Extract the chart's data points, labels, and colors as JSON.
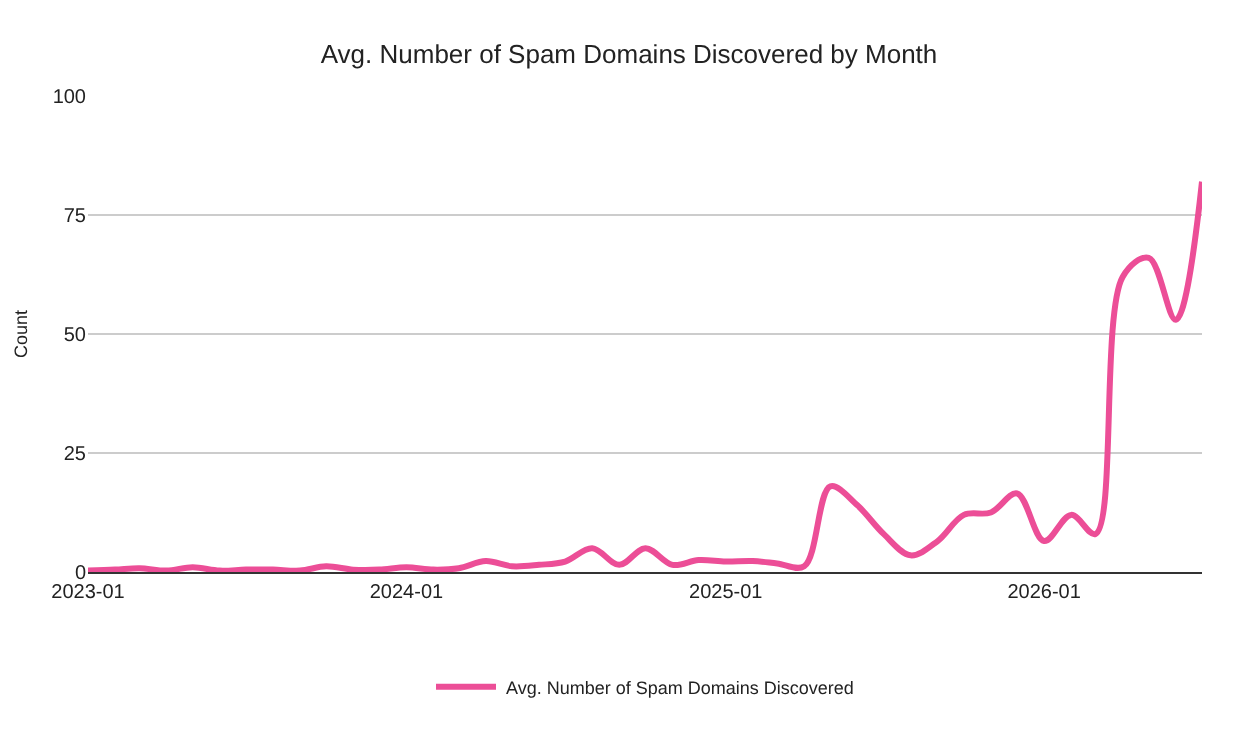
{
  "chart_data": {
    "type": "line",
    "title": "Avg. Number of Spam Domains Discovered by Month",
    "ylabel": "Count",
    "x": [
      "2023-01",
      "2023-02",
      "2023-03",
      "2023-04",
      "2023-05",
      "2023-06",
      "2023-07",
      "2023-08",
      "2023-09",
      "2023-10",
      "2023-11",
      "2023-12",
      "2024-01",
      "2024-02",
      "2024-03",
      "2024-04",
      "2024-05",
      "2024-06",
      "2024-07",
      "2024-08",
      "2024-09",
      "2024-10",
      "2024-11",
      "2024-12",
      "2025-01",
      "2025-02",
      "2025-03",
      "2025-04",
      "2025-05",
      "2025-06",
      "2025-07",
      "2025-08",
      "2025-09",
      "2025-10",
      "2025-11",
      "2025-12",
      "2026-01",
      "2026-02",
      "2026-03",
      "2026-04",
      "2026-05",
      "2026-06",
      "2026-07"
    ],
    "series": [
      {
        "name": "Avg. Number of Spam Domains Discovered",
        "color": "#ec4e97",
        "values": [
          0.3,
          0.5,
          0.8,
          0.3,
          1,
          0.3,
          0.5,
          0.5,
          0.3,
          1.2,
          0.5,
          0.5,
          1,
          0.5,
          0.8,
          2.3,
          1.2,
          1.5,
          2.2,
          5,
          1.5,
          5,
          1.5,
          2.5,
          2.2,
          2.3,
          1.8,
          1.2,
          18,
          14,
          8,
          3.5,
          6.5,
          12,
          12.5,
          16.5,
          6.5,
          12,
          8,
          62,
          66,
          53,
          82
        ]
      }
    ],
    "xlim": [
      "2023-01",
      "2026-07"
    ],
    "xticks": [
      "2023-01",
      "2024-01",
      "2025-01",
      "2026-01"
    ],
    "ylim": [
      0,
      100
    ],
    "yticks": [
      0,
      25,
      50,
      75,
      100
    ],
    "grid": "y",
    "legend": "bottom",
    "marker": "none",
    "line_style": "solid"
  }
}
